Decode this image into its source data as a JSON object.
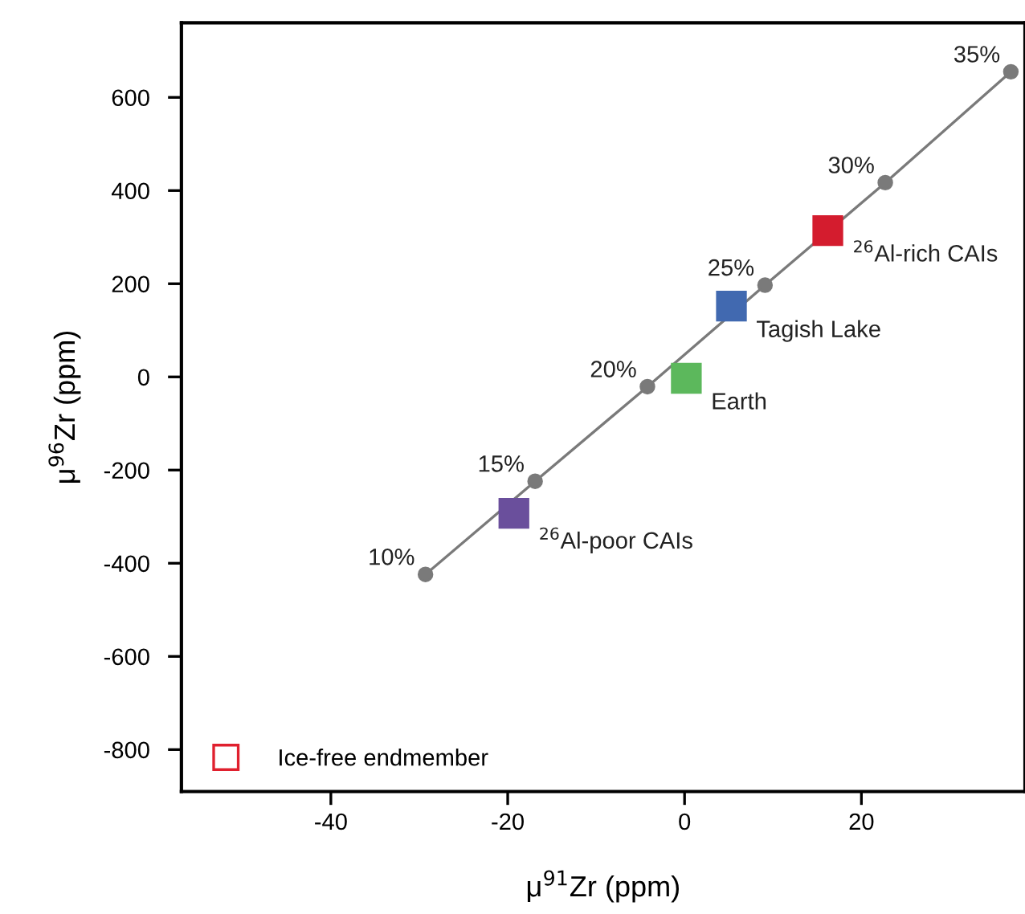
{
  "chart_data": {
    "type": "scatter",
    "xlabel": "μ$^{91}$Zr (ppm)",
    "ylabel": "μ$^{96}$Zr (ppm)",
    "xlim": [
      -56.9,
      38.5
    ],
    "ylim": [
      -890,
      760
    ],
    "xticks": [
      -40,
      -20,
      0,
      20
    ],
    "yticks": [
      -800,
      -600,
      -400,
      -200,
      0,
      200,
      400,
      600
    ],
    "grid": false,
    "legend": "bottom left",
    "series": [
      {
        "type": "line",
        "color": "#7a7a7a",
        "marker": "circle",
        "line_style": "solid",
        "x": [
          -29.3,
          -16.9,
          -4.2,
          9.1,
          22.7,
          36.9
        ],
        "values": [
          -424,
          -224,
          -21,
          197,
          417,
          655
        ]
      },
      {
        "marker": "square",
        "x": [
          -19.3,
          0.2,
          5.3,
          16.2
        ],
        "values": [
          -293,
          -3,
          152,
          314
        ],
        "colors": [
          "#6a4f9c",
          "#5cb85c",
          "#4169b0",
          "#d41c2e"
        ]
      },
      {
        "marker": "square",
        "name": "Ice-free endmember",
        "color": "#e0202e"
      }
    ],
    "annotations": [
      {
        "text": "10%",
        "x": -29.3,
        "y": -424
      },
      {
        "text": "15%",
        "x": -16.9,
        "y": -224
      },
      {
        "text": "20%",
        "x": -4.2,
        "y": -21
      },
      {
        "text": "25%",
        "x": 9.1,
        "y": 197
      },
      {
        "text": "30%",
        "x": 22.7,
        "y": 417
      },
      {
        "text": "35%",
        "x": 36.9,
        "y": 655
      },
      {
        "text": "$^{26}$Al-poor CAIs",
        "x": -19.3,
        "y": -293
      },
      {
        "text": "Earth",
        "x": 0.2,
        "y": -3
      },
      {
        "text": "Tagish Lake",
        "x": 5.3,
        "y": 152
      },
      {
        "text": "$^{26}$Al-rich CAIs",
        "x": 16.2,
        "y": 314
      }
    ]
  }
}
